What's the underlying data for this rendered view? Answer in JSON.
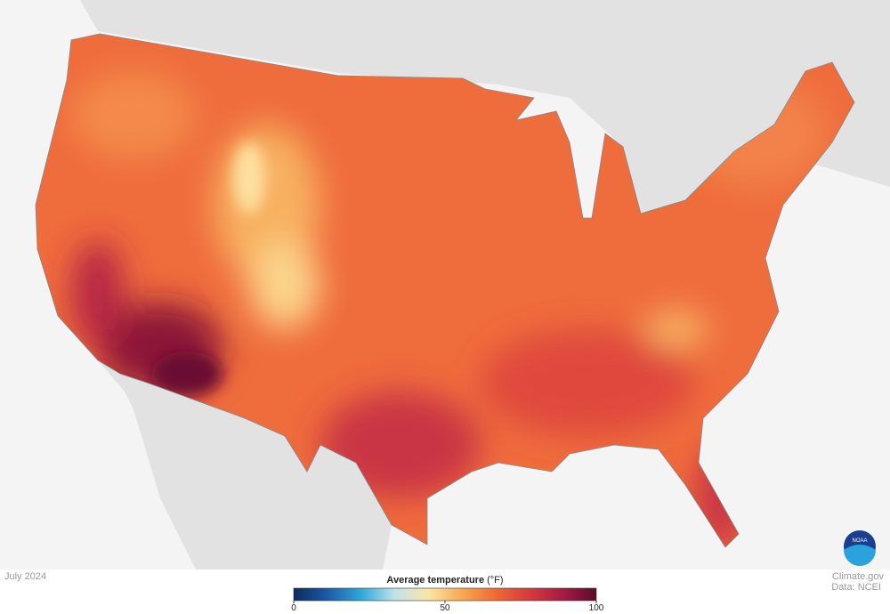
{
  "date": "July 2024",
  "credits": {
    "site": "Climate.gov",
    "data": "Data: NCEI",
    "logo": "NOAA"
  },
  "legend": {
    "title": "Average temperature",
    "unit": "(°F)",
    "range": [
      0,
      100
    ],
    "ticks": [
      0,
      50,
      100
    ],
    "colors": [
      "#0b2a5e",
      "#1c5aa8",
      "#2ea7d8",
      "#bfe3ea",
      "#fbe6a6",
      "#f7a950",
      "#ee6a35",
      "#d63a3e",
      "#a61b45",
      "#5a0c2c"
    ]
  }
}
